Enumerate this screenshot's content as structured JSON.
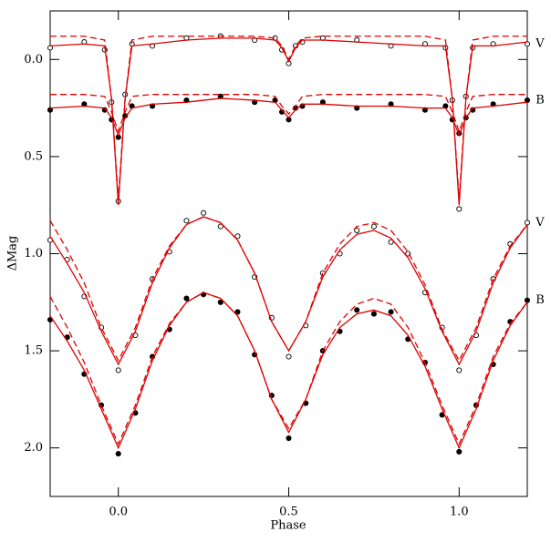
{
  "chart_data": {
    "type": "scatter",
    "x_label": "Phase",
    "y_label": "ΔMag",
    "xlim": [
      -0.2,
      1.2
    ],
    "ylim": [
      2.25,
      -0.25
    ],
    "xticks": [
      {
        "value": 0,
        "label": "0.0"
      },
      0.5,
      {
        "value": 1,
        "label": "1.0"
      }
    ],
    "yticks": [
      {
        "value": 0,
        "label": "0.0"
      },
      0.5,
      {
        "value": 1,
        "label": "1.0"
      },
      1.5,
      {
        "value": 2,
        "label": "2.0"
      }
    ],
    "series": [
      {
        "name": "V",
        "style": "open",
        "color": "#000000",
        "x": [
          -0.2,
          -0.1,
          -0.04,
          -0.02,
          0,
          0.02,
          0.04,
          0.1,
          0.2,
          0.3,
          0.4,
          0.46,
          0.48,
          0.5,
          0.52,
          0.54,
          0.6,
          0.7,
          0.8,
          0.9,
          0.96,
          0.98,
          1,
          1.02,
          1.04,
          1.1,
          1.2
        ],
        "values": [
          -0.06,
          -0.09,
          -0.05,
          0.22,
          0.73,
          0.18,
          -0.08,
          -0.07,
          -0.11,
          -0.12,
          -0.1,
          -0.11,
          -0.05,
          0.02,
          -0.07,
          -0.09,
          -0.11,
          -0.1,
          -0.07,
          -0.08,
          -0.06,
          0.21,
          0.77,
          0.19,
          -0.06,
          -0.08,
          -0.08
        ]
      },
      {
        "style": "solid",
        "color": "#e00000",
        "x": [
          -0.2,
          -0.1,
          -0.04,
          -0.02,
          0,
          0.02,
          0.04,
          0.1,
          0.2,
          0.3,
          0.4,
          0.46,
          0.48,
          0.5,
          0.52,
          0.54,
          0.6,
          0.7,
          0.8,
          0.9,
          0.96,
          0.98,
          1,
          1.02,
          1.04,
          1.1,
          1.2
        ],
        "values": [
          -0.07,
          -0.08,
          -0.07,
          0.2,
          0.75,
          0.2,
          -0.07,
          -0.08,
          -0.1,
          -0.11,
          -0.11,
          -0.1,
          -0.06,
          0.01,
          -0.06,
          -0.1,
          -0.1,
          -0.09,
          -0.08,
          -0.07,
          -0.07,
          0.2,
          0.75,
          0.2,
          -0.07,
          -0.07,
          -0.09
        ]
      },
      {
        "style": "dashed",
        "color": "#e00000",
        "x": [
          -0.2,
          -0.1,
          -0.04,
          -0.02,
          0,
          0.02,
          0.04,
          0.1,
          0.2,
          0.3,
          0.4,
          0.46,
          0.48,
          0.5,
          0.52,
          0.54,
          0.6,
          0.7,
          0.8,
          0.9,
          0.96,
          0.98,
          1,
          1.02,
          1.04,
          1.1,
          1.2
        ],
        "values": [
          -0.12,
          -0.12,
          -0.1,
          0.2,
          0.72,
          0.2,
          -0.1,
          -0.12,
          -0.12,
          -0.12,
          -0.12,
          -0.11,
          -0.07,
          0.0,
          -0.07,
          -0.11,
          -0.12,
          -0.12,
          -0.12,
          -0.12,
          -0.1,
          0.2,
          0.72,
          0.2,
          -0.1,
          -0.12,
          -0.12
        ]
      },
      {
        "name": "B",
        "style": "filled",
        "color": "#000000",
        "x": [
          -0.2,
          -0.1,
          -0.04,
          -0.02,
          0,
          0.02,
          0.04,
          0.1,
          0.2,
          0.3,
          0.4,
          0.46,
          0.48,
          0.5,
          0.52,
          0.54,
          0.6,
          0.7,
          0.8,
          0.9,
          0.96,
          0.98,
          1,
          1.02,
          1.04,
          1.1,
          1.2
        ],
        "values": [
          0.26,
          0.23,
          0.26,
          0.31,
          0.4,
          0.29,
          0.24,
          0.24,
          0.21,
          0.19,
          0.22,
          0.21,
          0.27,
          0.31,
          0.25,
          0.24,
          0.22,
          0.25,
          0.23,
          0.26,
          0.24,
          0.31,
          0.38,
          0.3,
          0.26,
          0.23,
          0.21
        ]
      },
      {
        "style": "solid",
        "color": "#e00000",
        "x": [
          -0.2,
          -0.1,
          -0.04,
          -0.02,
          0,
          0.02,
          0.04,
          0.1,
          0.2,
          0.3,
          0.4,
          0.46,
          0.48,
          0.5,
          0.52,
          0.54,
          0.6,
          0.7,
          0.8,
          0.9,
          0.96,
          0.98,
          1,
          1.02,
          1.04,
          1.1,
          1.2
        ],
        "values": [
          0.25,
          0.24,
          0.25,
          0.3,
          0.39,
          0.3,
          0.25,
          0.23,
          0.22,
          0.2,
          0.21,
          0.22,
          0.26,
          0.3,
          0.26,
          0.23,
          0.23,
          0.24,
          0.24,
          0.25,
          0.25,
          0.3,
          0.39,
          0.3,
          0.25,
          0.24,
          0.22
        ]
      },
      {
        "style": "dashed",
        "color": "#e00000",
        "x": [
          -0.2,
          -0.1,
          -0.04,
          -0.02,
          0,
          0.02,
          0.04,
          0.1,
          0.2,
          0.3,
          0.4,
          0.46,
          0.48,
          0.5,
          0.52,
          0.54,
          0.6,
          0.7,
          0.8,
          0.9,
          0.96,
          0.98,
          1,
          1.02,
          1.04,
          1.1,
          1.2
        ],
        "values": [
          0.18,
          0.18,
          0.19,
          0.27,
          0.37,
          0.27,
          0.19,
          0.18,
          0.18,
          0.18,
          0.18,
          0.19,
          0.24,
          0.28,
          0.24,
          0.19,
          0.18,
          0.18,
          0.18,
          0.18,
          0.19,
          0.27,
          0.37,
          0.27,
          0.19,
          0.18,
          0.18
        ]
      },
      {
        "name": "V",
        "style": "open",
        "color": "#000000",
        "x": [
          -0.2,
          -0.15,
          -0.1,
          -0.05,
          0,
          0.05,
          0.1,
          0.15,
          0.2,
          0.25,
          0.3,
          0.35,
          0.4,
          0.45,
          0.5,
          0.55,
          0.6,
          0.65,
          0.7,
          0.75,
          0.8,
          0.85,
          0.9,
          0.95,
          1,
          1.05,
          1.1,
          1.15,
          1.2
        ],
        "values": [
          0.93,
          1.03,
          1.22,
          1.38,
          1.6,
          1.42,
          1.13,
          0.99,
          0.83,
          0.79,
          0.86,
          0.91,
          1.12,
          1.33,
          1.53,
          1.37,
          1.1,
          1.0,
          0.88,
          0.86,
          0.94,
          1.0,
          1.2,
          1.38,
          1.6,
          1.42,
          1.13,
          0.95,
          0.84
        ]
      },
      {
        "style": "solid",
        "color": "#e00000",
        "x": [
          -0.2,
          -0.15,
          -0.1,
          -0.05,
          0,
          0.05,
          0.1,
          0.15,
          0.2,
          0.25,
          0.3,
          0.35,
          0.4,
          0.45,
          0.5,
          0.55,
          0.6,
          0.65,
          0.7,
          0.75,
          0.8,
          0.85,
          0.9,
          0.95,
          1,
          1.05,
          1.1,
          1.15,
          1.2
        ],
        "values": [
          0.91,
          1.05,
          1.2,
          1.4,
          1.57,
          1.4,
          1.15,
          0.97,
          0.85,
          0.81,
          0.84,
          0.93,
          1.1,
          1.35,
          1.5,
          1.35,
          1.12,
          0.98,
          0.9,
          0.88,
          0.92,
          1.02,
          1.18,
          1.4,
          1.57,
          1.4,
          1.15,
          0.97,
          0.85
        ]
      },
      {
        "style": "dashed",
        "color": "#e00000",
        "x": [
          -0.2,
          -0.15,
          -0.1,
          -0.05,
          0,
          0.05,
          0.1,
          0.15,
          0.2,
          0.25,
          0.3,
          0.35,
          0.4,
          0.45,
          0.5,
          0.55,
          0.6,
          0.65,
          0.7,
          0.75,
          0.8,
          0.85,
          0.9,
          0.95,
          1,
          1.05,
          1.1,
          1.15,
          1.2
        ],
        "values": [
          0.83,
          0.98,
          1.15,
          1.38,
          1.55,
          1.38,
          1.13,
          0.96,
          0.85,
          0.81,
          0.84,
          0.93,
          1.1,
          1.35,
          1.5,
          1.35,
          1.1,
          0.95,
          0.86,
          0.84,
          0.88,
          0.99,
          1.16,
          1.39,
          1.55,
          1.38,
          1.13,
          0.96,
          0.85
        ]
      },
      {
        "name": "B",
        "style": "filled",
        "color": "#000000",
        "x": [
          -0.2,
          -0.15,
          -0.1,
          -0.05,
          0,
          0.05,
          0.1,
          0.15,
          0.2,
          0.25,
          0.3,
          0.35,
          0.4,
          0.45,
          0.5,
          0.55,
          0.6,
          0.65,
          0.7,
          0.75,
          0.8,
          0.85,
          0.9,
          0.95,
          1,
          1.05,
          1.1,
          1.15,
          1.2
        ],
        "values": [
          1.34,
          1.43,
          1.62,
          1.78,
          2.03,
          1.82,
          1.53,
          1.39,
          1.23,
          1.21,
          1.25,
          1.3,
          1.52,
          1.73,
          1.95,
          1.77,
          1.5,
          1.4,
          1.29,
          1.31,
          1.3,
          1.44,
          1.56,
          1.83,
          2.02,
          1.78,
          1.57,
          1.35,
          1.24
        ]
      },
      {
        "style": "solid",
        "color": "#e00000",
        "x": [
          -0.2,
          -0.15,
          -0.1,
          -0.05,
          0,
          0.05,
          0.1,
          0.15,
          0.2,
          0.25,
          0.3,
          0.35,
          0.4,
          0.45,
          0.5,
          0.55,
          0.6,
          0.65,
          0.7,
          0.75,
          0.8,
          0.85,
          0.9,
          0.95,
          1,
          1.05,
          1.1,
          1.15,
          1.2
        ],
        "values": [
          1.32,
          1.45,
          1.6,
          1.8,
          2.0,
          1.8,
          1.55,
          1.37,
          1.25,
          1.2,
          1.23,
          1.32,
          1.5,
          1.75,
          1.92,
          1.75,
          1.52,
          1.38,
          1.31,
          1.29,
          1.32,
          1.42,
          1.58,
          1.8,
          2.0,
          1.8,
          1.55,
          1.37,
          1.25
        ]
      },
      {
        "style": "dashed",
        "color": "#e00000",
        "x": [
          -0.2,
          -0.15,
          -0.1,
          -0.05,
          0,
          0.05,
          0.1,
          0.15,
          0.2,
          0.25,
          0.3,
          0.35,
          0.4,
          0.45,
          0.5,
          0.55,
          0.6,
          0.65,
          0.7,
          0.75,
          0.8,
          0.85,
          0.9,
          0.95,
          1,
          1.05,
          1.1,
          1.15,
          1.2
        ],
        "values": [
          1.22,
          1.38,
          1.56,
          1.78,
          1.98,
          1.78,
          1.53,
          1.36,
          1.25,
          1.2,
          1.23,
          1.32,
          1.5,
          1.75,
          1.9,
          1.75,
          1.5,
          1.35,
          1.26,
          1.23,
          1.26,
          1.38,
          1.56,
          1.78,
          1.98,
          1.78,
          1.53,
          1.36,
          1.25
        ]
      }
    ]
  }
}
